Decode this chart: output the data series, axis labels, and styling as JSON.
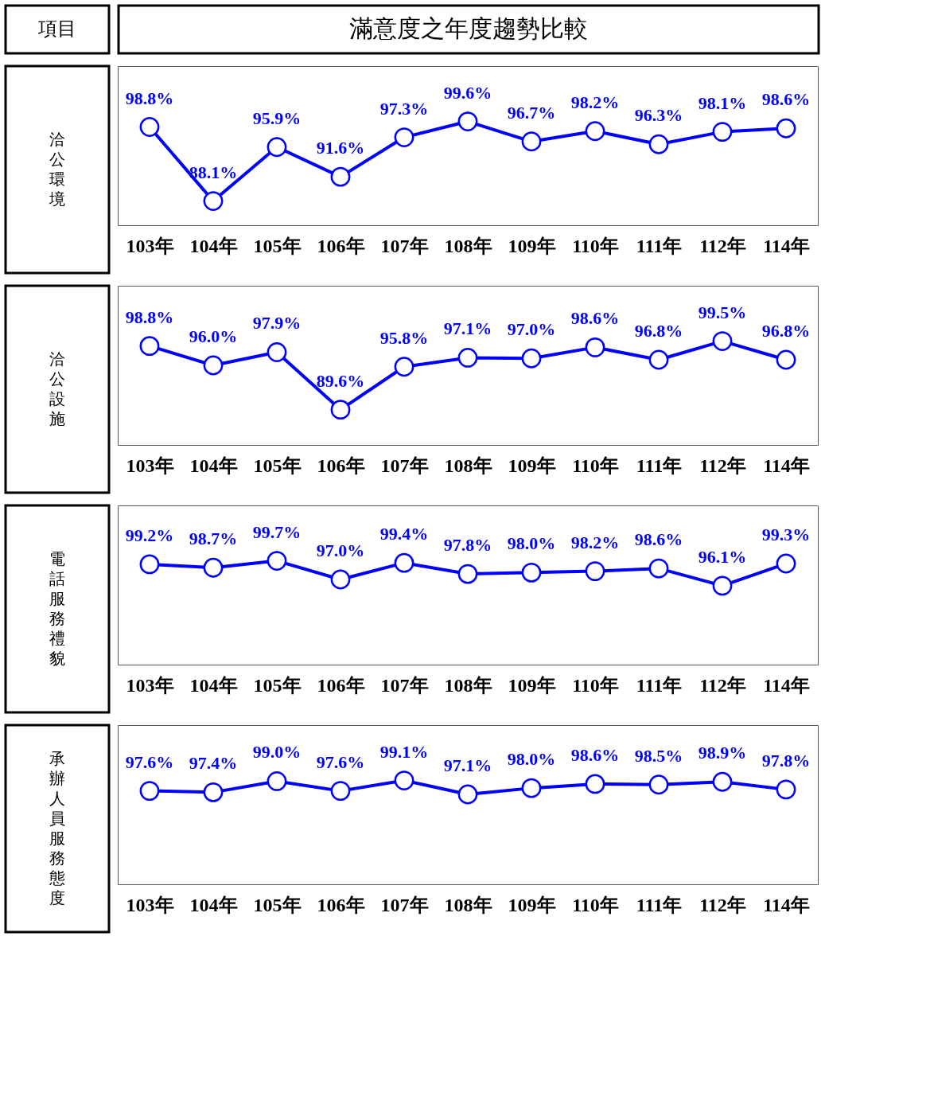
{
  "chart_data": [
    {
      "type": "line",
      "title": "滿意度之年度趨勢比較",
      "annotations": [
        "項目"
      ],
      "ylabel": "洽公環境",
      "marker": "circle",
      "line_style": "solid",
      "grid": false,
      "legend": false,
      "color": "#0000ff",
      "categories": [
        "103年",
        "104年",
        "105年",
        "106年",
        "107年",
        "108年",
        "109年",
        "110年",
        "111年",
        "112年",
        "114年"
      ],
      "values": [
        98.8,
        88.1,
        95.9,
        91.6,
        97.3,
        99.6,
        96.7,
        98.2,
        96.3,
        98.1,
        98.6
      ],
      "value_labels": [
        "98.8%",
        "88.1%",
        "95.9%",
        "91.6%",
        "97.3%",
        "99.6%",
        "96.7%",
        "98.2%",
        "96.3%",
        "98.1%",
        "98.6%"
      ]
    },
    {
      "type": "line",
      "ylabel": "洽公設施",
      "marker": "circle",
      "line_style": "solid",
      "grid": false,
      "legend": false,
      "color": "#0000ff",
      "categories": [
        "103年",
        "104年",
        "105年",
        "106年",
        "107年",
        "108年",
        "109年",
        "110年",
        "111年",
        "112年",
        "114年"
      ],
      "values": [
        98.8,
        96.0,
        97.9,
        89.6,
        95.8,
        97.1,
        97.0,
        98.6,
        96.8,
        99.5,
        96.8
      ],
      "value_labels": [
        "98.8%",
        "96.0%",
        "97.9%",
        "89.6%",
        "95.8%",
        "97.1%",
        "97.0%",
        "98.6%",
        "96.8%",
        "99.5%",
        "96.8%"
      ]
    },
    {
      "type": "line",
      "ylabel": "電話服務禮貌",
      "marker": "circle",
      "line_style": "solid",
      "grid": false,
      "legend": false,
      "color": "#0000ff",
      "categories": [
        "103年",
        "104年",
        "105年",
        "106年",
        "107年",
        "108年",
        "109年",
        "110年",
        "111年",
        "112年",
        "114年"
      ],
      "values": [
        99.2,
        98.7,
        99.7,
        97.0,
        99.4,
        97.8,
        98.0,
        98.2,
        98.6,
        96.1,
        99.3
      ],
      "value_labels": [
        "99.2%",
        "98.7%",
        "99.7%",
        "97.0%",
        "99.4%",
        "97.8%",
        "98.0%",
        "98.2%",
        "98.6%",
        "96.1%",
        "99.3%"
      ]
    },
    {
      "type": "line",
      "ylabel": "承辦人員服務態度",
      "marker": "circle",
      "line_style": "solid",
      "grid": false,
      "legend": false,
      "color": "#0000ff",
      "categories": [
        "103年",
        "104年",
        "105年",
        "106年",
        "107年",
        "108年",
        "109年",
        "110年",
        "111年",
        "112年",
        "114年"
      ],
      "values": [
        97.6,
        97.4,
        99.0,
        97.6,
        99.1,
        97.1,
        98.0,
        98.6,
        98.5,
        98.9,
        97.8
      ],
      "value_labels": [
        "97.6%",
        "97.4%",
        "99.0%",
        "97.6%",
        "99.1%",
        "97.1%",
        "98.0%",
        "98.6%",
        "98.5%",
        "98.9%",
        "97.8%"
      ]
    }
  ]
}
